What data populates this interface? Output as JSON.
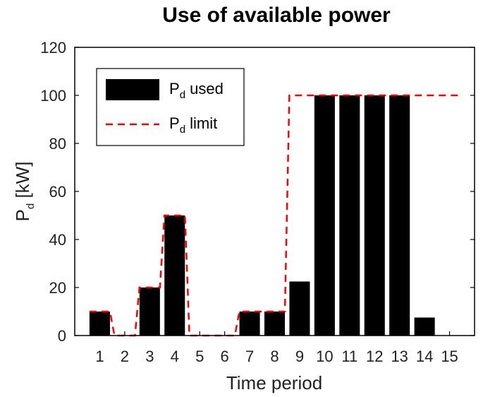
{
  "chart_data": {
    "type": "bar",
    "title": "Use of available power",
    "xlabel": "Time period",
    "ylabel": {
      "main": "P",
      "sub": "d",
      "rest": " [kW]"
    },
    "categories": [
      "1",
      "2",
      "3",
      "4",
      "5",
      "6",
      "7",
      "8",
      "9",
      "10",
      "11",
      "12",
      "13",
      "14",
      "15"
    ],
    "series": [
      {
        "name": {
          "main": "P",
          "sub": "d",
          "rest": " used"
        },
        "type": "bar",
        "color": "#000000",
        "values": [
          10,
          0,
          20,
          50,
          0,
          0,
          10,
          10,
          22.5,
          100,
          100,
          100,
          100,
          7.5,
          0
        ]
      },
      {
        "name": {
          "main": "P",
          "sub": "d",
          "rest": " limit"
        },
        "type": "step",
        "style": "dashed",
        "color": "#ff0000",
        "values": [
          10,
          0,
          20,
          50,
          0,
          0,
          10,
          10,
          100,
          100,
          100,
          100,
          100,
          100,
          100
        ]
      }
    ],
    "ylim": [
      0,
      120
    ],
    "yticks": [
      0,
      20,
      40,
      60,
      80,
      100,
      120
    ],
    "legend_position": "top-left",
    "grid": false
  }
}
